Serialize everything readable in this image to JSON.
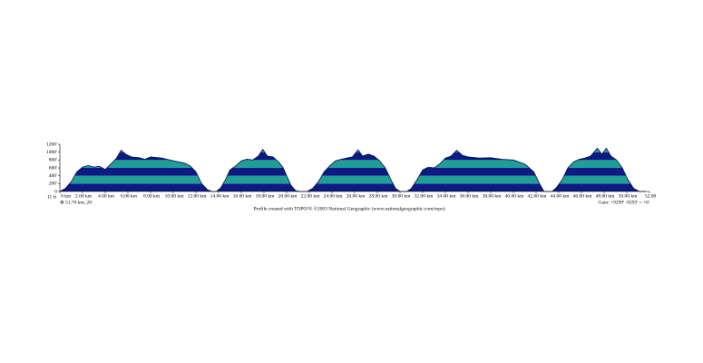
{
  "chart_data": {
    "type": "area",
    "x": [
      0,
      0.5,
      1,
      1.5,
      2,
      2.5,
      3,
      3.5,
      4,
      4.5,
      5,
      5.4,
      5.8,
      6.3,
      7,
      7.5,
      8,
      9,
      10,
      11,
      11.5,
      12,
      12.5,
      13,
      13.4,
      13.8,
      14.2,
      14.6,
      15,
      15.5,
      16,
      16.5,
      17,
      17.5,
      17.9,
      18.3,
      18.8,
      19.3,
      19.7,
      20,
      20.4,
      20.8,
      21.2,
      21.8,
      22.3,
      22.8,
      23.3,
      23.8,
      24.3,
      24.8,
      25.3,
      25.8,
      26.3,
      26.7,
      27.2,
      27.7,
      28.2,
      28.7,
      29.2,
      29.6,
      30,
      30.6,
      31,
      31.5,
      32,
      32.5,
      33,
      33.5,
      34,
      34.5,
      35,
      35.5,
      36,
      37,
      38,
      39,
      40,
      41,
      41.8,
      42.3,
      42.7,
      43.4,
      43.8,
      44.3,
      44.8,
      45.3,
      45.8,
      46.3,
      46.8,
      47.4,
      47.8,
      48.2,
      48.6,
      49.1,
      49.6,
      50.1,
      50.6,
      51.1,
      51.7
    ],
    "values": [
      0,
      80,
      250,
      500,
      620,
      660,
      620,
      640,
      560,
      700,
      850,
      1050,
      950,
      880,
      860,
      820,
      880,
      850,
      780,
      720,
      650,
      500,
      200,
      50,
      0,
      0,
      100,
      300,
      550,
      650,
      780,
      820,
      800,
      900,
      1070,
      900,
      880,
      750,
      600,
      400,
      150,
      20,
      0,
      0,
      80,
      250,
      500,
      650,
      780,
      820,
      850,
      880,
      1060,
      900,
      950,
      900,
      780,
      600,
      300,
      80,
      0,
      0,
      80,
      300,
      550,
      620,
      600,
      700,
      850,
      900,
      1050,
      920,
      880,
      850,
      860,
      820,
      800,
      700,
      500,
      200,
      0,
      0,
      100,
      300,
      600,
      750,
      820,
      850,
      900,
      1100,
      950,
      1100,
      900,
      800,
      600,
      300,
      80,
      0,
      0
    ],
    "colors": [
      "#0d1a82",
      "#1f9e98"
    ],
    "outline": "#06124a",
    "xlim": [
      0,
      52
    ],
    "ylim": [
      0,
      1200
    ],
    "xticks": [
      {
        "value": 0,
        "label": "0 km"
      },
      {
        "value": 2,
        "label": "2.00 km"
      },
      {
        "value": 4,
        "label": "4.00 km"
      },
      {
        "value": 6,
        "label": "6.00 km"
      },
      {
        "value": 8,
        "label": "8.00 km"
      },
      {
        "value": 10,
        "label": "10.00 km"
      },
      {
        "value": 12,
        "label": "12.00 km"
      },
      {
        "value": 14,
        "label": "14.00 km"
      },
      {
        "value": 16,
        "label": "16.00 km"
      },
      {
        "value": 18,
        "label": "18.00 km"
      },
      {
        "value": 20,
        "label": "20.00 km"
      },
      {
        "value": 22,
        "label": "22.00 km"
      },
      {
        "value": 24,
        "label": "24.00 km"
      },
      {
        "value": 26,
        "label": "26.00 km"
      },
      {
        "value": 28,
        "label": "28.00 km"
      },
      {
        "value": 30,
        "label": "30.00 km"
      },
      {
        "value": 32,
        "label": "32.00 km"
      },
      {
        "value": 34,
        "label": "34.00 km"
      },
      {
        "value": 36,
        "label": "36.00 km"
      },
      {
        "value": 38,
        "label": "38.00 km"
      },
      {
        "value": 40,
        "label": "40.00 km"
      },
      {
        "value": 42,
        "label": "42.00 km"
      },
      {
        "value": 44,
        "label": "44.00 km"
      },
      {
        "value": 46,
        "label": "46.00 km"
      },
      {
        "value": 48,
        "label": "48.00 km"
      },
      {
        "value": 50,
        "label": "50.00 km"
      },
      {
        "value": 52,
        "label": "52.00"
      }
    ],
    "yticks": [
      0,
      {
        "value": 200,
        "label": "200'"
      },
      {
        "value": 400,
        "label": "400'"
      },
      {
        "value": 600,
        "label": "600'"
      },
      {
        "value": 800,
        "label": "800'"
      },
      {
        "value": 1000,
        "label": "1000'"
      },
      {
        "value": 1200,
        "label": "1200'"
      }
    ],
    "base_label": "11 ft",
    "distance_label": "⊕ 51.70 km, 26'",
    "gain_label": "Gain: +9299' -9293' = +6'",
    "credit": "Profile created with TOPO!® ©2003 National Geographic (www.nationalgeographic.com/topo)"
  }
}
